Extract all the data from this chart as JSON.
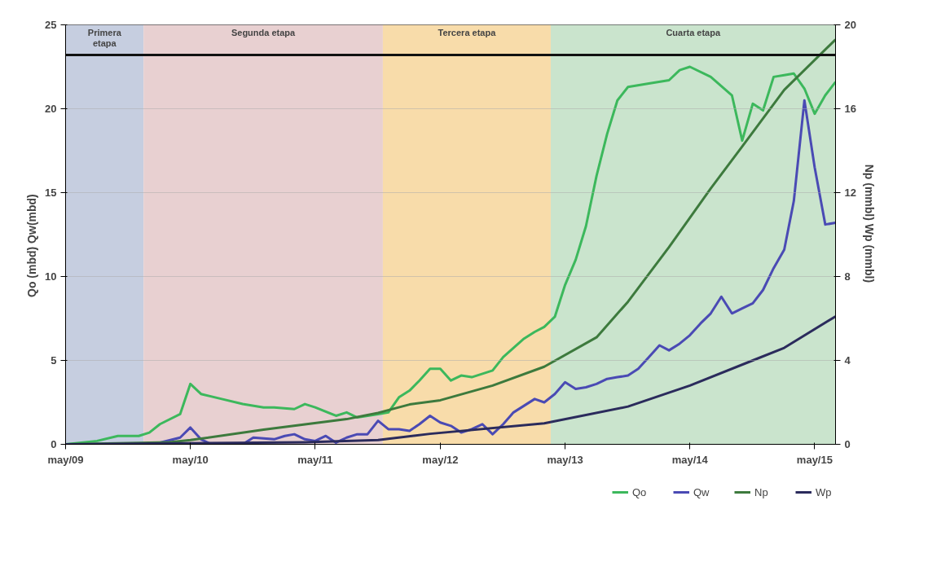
{
  "chart_data": {
    "type": "line",
    "ylabel": "Qo (mbd)        Qw(mbd)",
    "y2label": "Np (mmbl)        Wp (mmbl)",
    "xlim": [
      "2009-05",
      "2015-07"
    ],
    "xticks": [
      {
        "value": "2009-05",
        "label": "may/09"
      },
      {
        "value": "2010-05",
        "label": "may/10"
      },
      {
        "value": "2011-05",
        "label": "may/11"
      },
      {
        "value": "2012-05",
        "label": "may/12"
      },
      {
        "value": "2013-05",
        "label": "may/13"
      },
      {
        "value": "2014-05",
        "label": "may/14"
      },
      {
        "value": "2015-05",
        "label": "may/15"
      }
    ],
    "ylim": [
      0,
      25
    ],
    "yticks": [
      0,
      5,
      10,
      15,
      20,
      25
    ],
    "y2lim": [
      0,
      20
    ],
    "y2ticks": [
      0,
      4,
      8,
      12,
      16,
      20
    ],
    "grid": "y",
    "legend": "bottom",
    "line_style": "solid",
    "marker": "none",
    "bands": [
      {
        "axis": "x",
        "from": "2009-05",
        "to": "2009-12-15",
        "label": "Primera\netapa",
        "color": "#c6cee0"
      },
      {
        "axis": "x",
        "from": "2009-12-15",
        "to": "2011-11-15",
        "label": "Segunda etapa",
        "color": "#e8d0d1"
      },
      {
        "axis": "x",
        "from": "2011-11-15",
        "to": "2013-03-20",
        "label": "Tercera etapa",
        "color": "#f8dcaa"
      },
      {
        "axis": "x",
        "from": "2013-03-20",
        "to": "2015-07",
        "label": "Cuarta etapa",
        "color": "#cae4cd"
      }
    ],
    "ref_lines": [
      {
        "axis": "y",
        "value": 23.2,
        "label": null,
        "color": "#111111"
      }
    ],
    "series": [
      {
        "name": "Qo",
        "color": "#3cb85c",
        "x": [
          "2009-05",
          "2009-08",
          "2009-10",
          "2009-12",
          "2010-01",
          "2010-02",
          "2010-04",
          "2010-05",
          "2010-06",
          "2010-08",
          "2010-10",
          "2010-12",
          "2011-01",
          "2011-03",
          "2011-04",
          "2011-05",
          "2011-07",
          "2011-08",
          "2011-09",
          "2011-11",
          "2011-12",
          "2012-01",
          "2012-02",
          "2012-03",
          "2012-04",
          "2012-05",
          "2012-06",
          "2012-07",
          "2012-08",
          "2012-10",
          "2012-11",
          "2013-01",
          "2013-02",
          "2013-03",
          "2013-04",
          "2013-05",
          "2013-06",
          "2013-07",
          "2013-08",
          "2013-09",
          "2013-10",
          "2013-11",
          "2014-01",
          "2014-03",
          "2014-04",
          "2014-05",
          "2014-07",
          "2014-09",
          "2014-10",
          "2014-11",
          "2014-12",
          "2015-01",
          "2015-02",
          "2015-03",
          "2015-04",
          "2015-05",
          "2015-06",
          "2015-07"
        ],
        "values": [
          0,
          0.2,
          0.5,
          0.5,
          0.7,
          1.2,
          1.8,
          3.6,
          3.0,
          2.7,
          2.4,
          2.2,
          2.2,
          2.1,
          2.4,
          2.2,
          1.7,
          1.9,
          1.6,
          1.8,
          1.9,
          2.8,
          3.2,
          3.8,
          4.5,
          4.5,
          3.8,
          4.1,
          4.0,
          4.4,
          5.2,
          6.3,
          6.7,
          7.0,
          7.6,
          9.5,
          11.0,
          13.0,
          16.0,
          18.5,
          20.5,
          21.3,
          21.5,
          21.7,
          22.3,
          22.5,
          21.9,
          20.8,
          18.1,
          20.3,
          19.9,
          21.9,
          22.0,
          22.1,
          21.2,
          19.7,
          20.8,
          21.6
        ]
      },
      {
        "name": "Qw",
        "color": "#4a4ab4",
        "x": [
          "2009-05",
          "2009-12",
          "2010-02",
          "2010-04",
          "2010-05",
          "2010-06",
          "2010-07",
          "2010-10",
          "2010-11",
          "2011-01",
          "2011-02",
          "2011-03",
          "2011-04",
          "2011-05",
          "2011-06",
          "2011-07",
          "2011-08",
          "2011-09",
          "2011-10",
          "2011-11",
          "2011-12",
          "2012-01",
          "2012-02",
          "2012-03",
          "2012-04",
          "2012-05",
          "2012-06",
          "2012-07",
          "2012-08",
          "2012-09",
          "2012-10",
          "2012-11",
          "2012-12",
          "2013-01",
          "2013-02",
          "2013-03",
          "2013-04",
          "2013-05",
          "2013-06",
          "2013-07",
          "2013-08",
          "2013-09",
          "2013-10",
          "2013-11",
          "2013-12",
          "2014-01",
          "2014-02",
          "2014-03",
          "2014-04",
          "2014-05",
          "2014-06",
          "2014-07",
          "2014-08",
          "2014-09",
          "2014-10",
          "2014-11",
          "2014-12",
          "2015-01",
          "2015-02",
          "2015-03",
          "2015-04",
          "2015-05",
          "2015-06",
          "2015-07"
        ],
        "values": [
          0,
          0,
          0.1,
          0.4,
          1.0,
          0.3,
          0,
          0,
          0.4,
          0.3,
          0.5,
          0.6,
          0.3,
          0.2,
          0.5,
          0.1,
          0.4,
          0.6,
          0.6,
          1.4,
          0.9,
          0.9,
          0.8,
          1.2,
          1.7,
          1.3,
          1.1,
          0.7,
          0.9,
          1.2,
          0.6,
          1.2,
          1.9,
          2.3,
          2.7,
          2.5,
          3.0,
          3.7,
          3.3,
          3.4,
          3.6,
          3.9,
          4.0,
          4.1,
          4.5,
          5.2,
          5.9,
          5.6,
          6.0,
          6.5,
          7.2,
          7.8,
          8.8,
          7.8,
          8.1,
          8.4,
          9.2,
          10.5,
          11.6,
          14.5,
          20.5,
          16.5,
          13.1,
          13.2
        ]
      },
      {
        "name": "Np",
        "color": "#3d7a3d",
        "axis": "y2",
        "x": [
          "2009-05",
          "2010-03",
          "2010-05",
          "2010-12",
          "2011-08",
          "2011-11",
          "2012-02",
          "2012-05",
          "2012-10",
          "2013-03",
          "2013-08",
          "2013-11",
          "2014-03",
          "2014-07",
          "2014-10",
          "2015-02",
          "2015-07"
        ],
        "values": [
          0,
          0.1,
          0.2,
          0.7,
          1.2,
          1.5,
          1.9,
          2.1,
          2.8,
          3.7,
          5.1,
          6.8,
          9.4,
          12.2,
          14.2,
          16.9,
          19.3
        ]
      },
      {
        "name": "Wp",
        "color": "#2b2b5c",
        "axis": "y2",
        "x": [
          "2009-05",
          "2011-04",
          "2011-11",
          "2012-04",
          "2013-03",
          "2013-11",
          "2014-05",
          "2014-11",
          "2015-02",
          "2015-07"
        ],
        "values": [
          0,
          0.1,
          0.2,
          0.5,
          1.0,
          1.8,
          2.8,
          4.0,
          4.6,
          6.1
        ]
      }
    ]
  }
}
